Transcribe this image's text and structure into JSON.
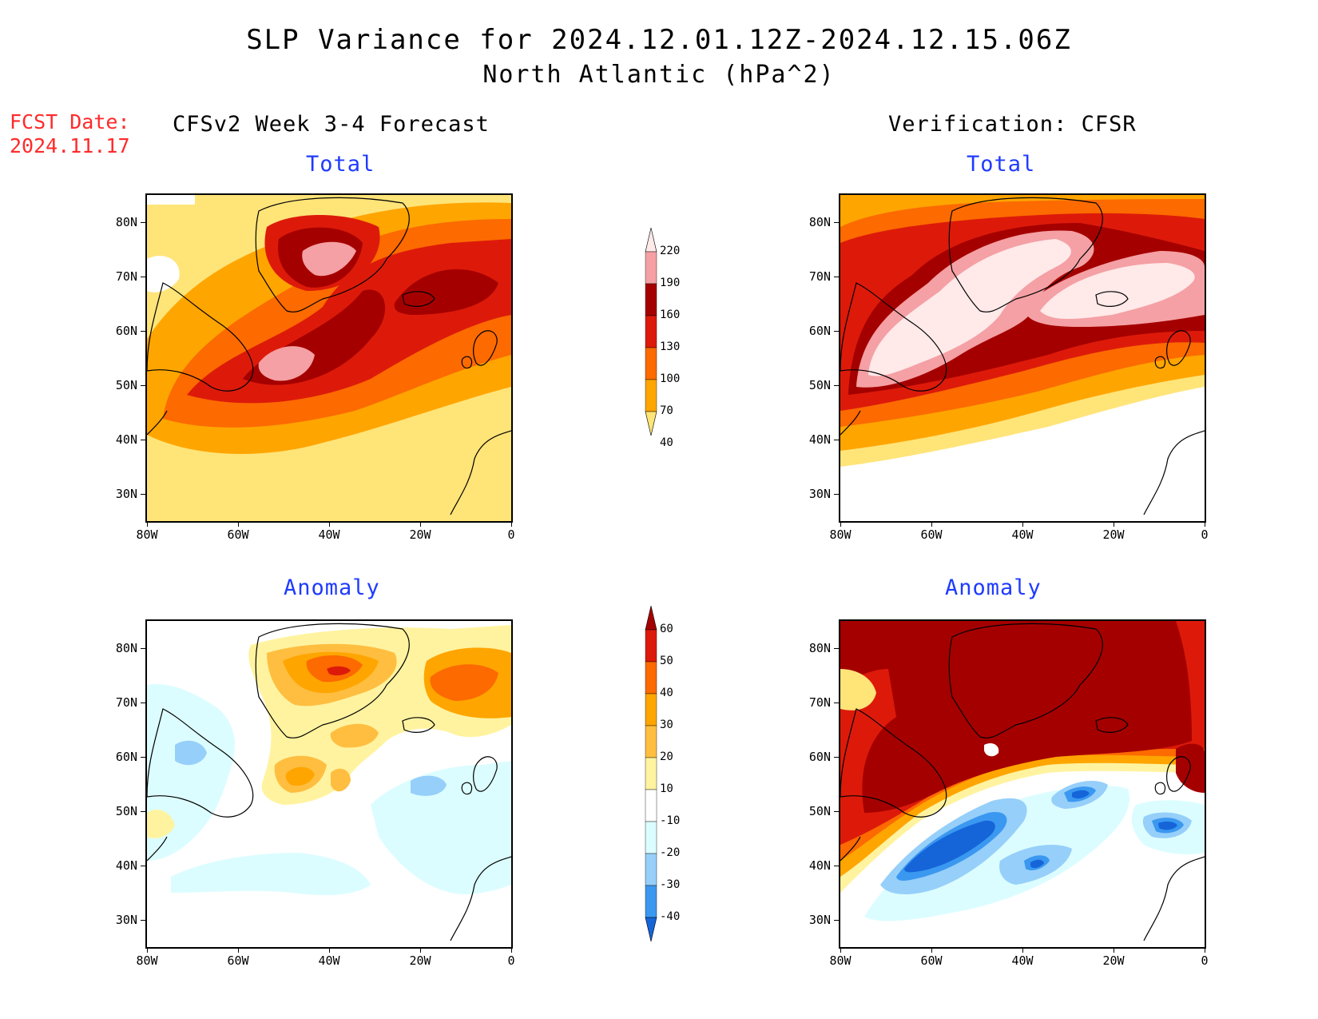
{
  "title": {
    "line1": "SLP Variance for 2024.12.01.12Z-2024.12.15.06Z",
    "line2": "North Atlantic (hPa^2)"
  },
  "fcst_date": {
    "label": "FCST Date:",
    "value": "2024.11.17"
  },
  "columns": {
    "left_title": "CFSv2 Week 3-4 Forecast",
    "right_title": "Verification: CFSR"
  },
  "panel_titles": {
    "total": "Total",
    "anomaly": "Anomaly"
  },
  "axes": {
    "lat_labels": [
      "80N",
      "70N",
      "60N",
      "50N",
      "40N",
      "30N"
    ],
    "lat_values": [
      80,
      70,
      60,
      50,
      40,
      30
    ],
    "lon_labels": [
      "80W",
      "60W",
      "40W",
      "20W",
      "0"
    ],
    "lon_values": [
      -80,
      -60,
      -40,
      -20,
      0
    ],
    "lat_range": [
      25,
      85
    ],
    "lon_range": [
      -80,
      0
    ]
  },
  "colorbars": {
    "total": {
      "levels": [
        "220",
        "190",
        "160",
        "130",
        "100",
        "70",
        "40"
      ],
      "colors": [
        "#ffe9e9",
        "#f4a0a4",
        "#a50000",
        "#dd1a0a",
        "#fc6a00",
        "#ffa500",
        "#ffe478"
      ]
    },
    "anomaly": {
      "levels": [
        "60",
        "50",
        "40",
        "30",
        "20",
        "10",
        "-10",
        "-20",
        "-30",
        "-40"
      ],
      "colors": [
        "#a50000",
        "#dd1a0a",
        "#fc6a00",
        "#ffa500",
        "#ffbe40",
        "#fff3a0",
        "#ffffff",
        "#dcfdff",
        "#96cffa",
        "#3b98f0",
        "#1565d9"
      ]
    }
  }
}
